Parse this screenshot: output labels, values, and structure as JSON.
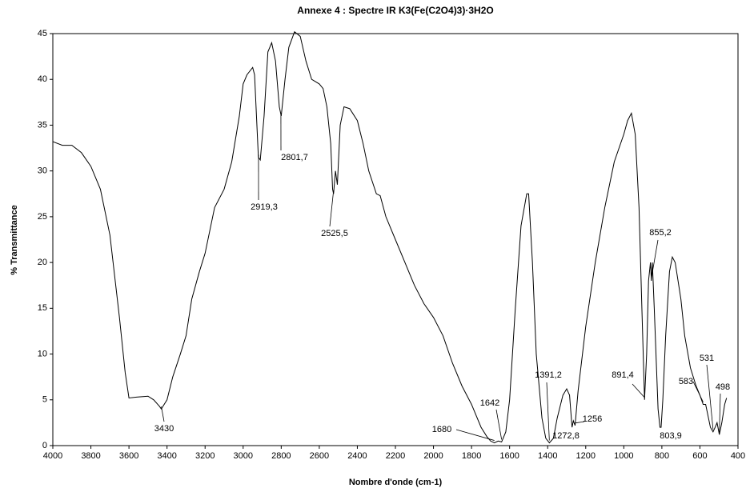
{
  "chart_data": {
    "type": "line",
    "title": "Annexe 4 : Spectre IR  K3(Fe(C2O4)3)·3H2O",
    "x_label": "Nombre d'onde (cm-1)",
    "y_label": "% Transmittance",
    "xlim": [
      4000,
      400
    ],
    "xticks": [
      4000,
      3800,
      3600,
      3400,
      3200,
      3000,
      2800,
      2600,
      2400,
      2200,
      2000,
      1800,
      1600,
      1400,
      1200,
      1000,
      800,
      600,
      400
    ],
    "ylim": [
      0,
      45
    ],
    "yticks": [
      0,
      5,
      10,
      15,
      20,
      25,
      30,
      35,
      40,
      45
    ],
    "series": [
      {
        "color": "#000000",
        "x": [
          4000,
          3950,
          3900,
          3850,
          3800,
          3750,
          3700,
          3650,
          3620,
          3600,
          3560,
          3500,
          3470,
          3440,
          3430,
          3400,
          3370,
          3330,
          3300,
          3270,
          3230,
          3200,
          3150,
          3100,
          3060,
          3020,
          3000,
          2980,
          2950,
          2940,
          2920,
          2910,
          2890,
          2870,
          2850,
          2830,
          2810,
          2800,
          2780,
          2760,
          2730,
          2700,
          2670,
          2640,
          2600,
          2580,
          2560,
          2540,
          2530,
          2525,
          2515,
          2505,
          2490,
          2470,
          2440,
          2400,
          2370,
          2340,
          2300,
          2280,
          2250,
          2200,
          2150,
          2100,
          2050,
          2000,
          1950,
          1900,
          1850,
          1800,
          1750,
          1720,
          1700,
          1680,
          1660,
          1642,
          1620,
          1600,
          1570,
          1540,
          1510,
          1500,
          1480,
          1460,
          1430,
          1410,
          1391,
          1370,
          1350,
          1320,
          1300,
          1285,
          1272,
          1265,
          1256,
          1240,
          1200,
          1150,
          1100,
          1050,
          1000,
          980,
          960,
          940,
          920,
          905,
          891,
          880,
          870,
          860,
          855,
          850,
          840,
          820,
          810,
          804,
          795,
          780,
          760,
          745,
          730,
          700,
          680,
          650,
          620,
          600,
          583,
          570,
          560,
          545,
          531,
          520,
          510,
          498,
          485,
          470,
          460
        ],
        "values": [
          33.2,
          32.8,
          32.8,
          32,
          30.5,
          28,
          23,
          14,
          8,
          5.2,
          5.3,
          5.4,
          5,
          4.3,
          4,
          5,
          7.5,
          10,
          12,
          16,
          19,
          21,
          26,
          28,
          31,
          36,
          39.5,
          40.5,
          41.3,
          40.5,
          31.5,
          31.2,
          36,
          43,
          44,
          42,
          37,
          36,
          40,
          43.5,
          45.2,
          44.7,
          42,
          40,
          39.5,
          39,
          37,
          33,
          28,
          27.5,
          30,
          28.5,
          35,
          37,
          36.8,
          35.5,
          33,
          30,
          27.5,
          27.3,
          25,
          22.5,
          20,
          17.5,
          15.5,
          14,
          12,
          9,
          6.5,
          4.5,
          2,
          1,
          0.5,
          0.3,
          0.5,
          0.4,
          1.5,
          5,
          15,
          24,
          27.5,
          27.5,
          20,
          10,
          3,
          0.8,
          0.3,
          0.8,
          3,
          5.5,
          6.2,
          5.5,
          2,
          2.7,
          2.2,
          6,
          13,
          20,
          26,
          31,
          34,
          35.5,
          36.3,
          34,
          26,
          15,
          5,
          10,
          18,
          20,
          18,
          20,
          15,
          4,
          2,
          2,
          5,
          12,
          19,
          20.6,
          20,
          16,
          12,
          8.5,
          6.5,
          5.5,
          4.5,
          4.5,
          3.5,
          2,
          1.5,
          2,
          2.5,
          1.2,
          2.5,
          4.5,
          5.2
        ]
      }
    ],
    "annotations": [
      {
        "label": "3430",
        "x": 3430,
        "y": 4
      },
      {
        "label": "2919,3",
        "x": 2919.3,
        "y": 31.5
      },
      {
        "label": "2801,7",
        "x": 2801.7,
        "y": 36
      },
      {
        "label": "2525,5",
        "x": 2525.5,
        "y": 27.5
      },
      {
        "label": "1680",
        "x": 1680,
        "y": 0.3
      },
      {
        "label": "1642",
        "x": 1642,
        "y": 0.4
      },
      {
        "label": "1391,2",
        "x": 1391.2,
        "y": 0.3
      },
      {
        "label": "1272,8",
        "x": 1272.8,
        "y": 2
      },
      {
        "label": "1256",
        "x": 1256,
        "y": 2.2
      },
      {
        "label": "891,4",
        "x": 891.4,
        "y": 5
      },
      {
        "label": "855,2",
        "x": 855.2,
        "y": 18
      },
      {
        "label": "803,9",
        "x": 803.9,
        "y": 2
      },
      {
        "label": "583",
        "x": 583,
        "y": 4.5
      },
      {
        "label": "531",
        "x": 531,
        "y": 1.5
      },
      {
        "label": "498",
        "x": 498,
        "y": 1.2
      }
    ]
  }
}
